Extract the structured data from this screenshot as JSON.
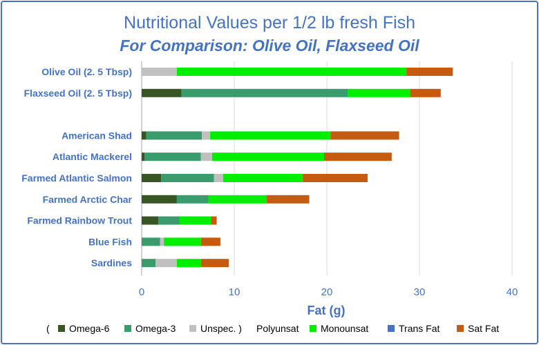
{
  "chart_data": {
    "type": "bar",
    "orientation": "horizontal",
    "stacked": true,
    "title": "Nutritional Values per 1/2 lb fresh Fish",
    "subtitle": "For Comparison: Olive Oil, Flaxseed Oil",
    "xlabel": "Fat (g)",
    "xlim": [
      0,
      40
    ],
    "xticks": [
      0,
      10,
      20,
      30,
      40
    ],
    "grid": true,
    "legend_placement": "bottom",
    "legend_prefix": "(",
    "categories": [
      "Olive Oil (2. 5 Tbsp)",
      "Flaxseed Oil (2. 5 Tbsp)",
      "",
      "American Shad",
      "Atlantic Mackerel",
      "Farmed Atlantic Salmon",
      "Farmed Arctic Char",
      "Farmed Rainbow Trout",
      "Blue Fish",
      "Sardines"
    ],
    "series": [
      {
        "name": "Omega-6",
        "color": "#375623",
        "values": [
          0.0,
          4.3,
          null,
          0.5,
          0.3,
          2.1,
          3.8,
          1.8,
          0.0,
          0.0
        ]
      },
      {
        "name": "Omega-3",
        "color": "#3a9b6c",
        "values": [
          0.0,
          18.0,
          null,
          6.0,
          6.1,
          5.7,
          3.4,
          2.3,
          2.0,
          1.5
        ]
      },
      {
        "name": "Unspec. )",
        "color": "#c0c0c0",
        "values": [
          3.8,
          0.0,
          null,
          0.9,
          1.2,
          1.0,
          0.0,
          0.0,
          0.4,
          2.3
        ]
      },
      {
        "name": "Polyunsat",
        "color": "#ffffff",
        "values": [
          0,
          0,
          null,
          0,
          0,
          0,
          0,
          0,
          0,
          0
        ]
      },
      {
        "name": "Monounsat",
        "color": "#00ee00",
        "values": [
          24.8,
          6.7,
          null,
          13.0,
          12.1,
          8.6,
          6.3,
          3.4,
          4.0,
          2.6
        ]
      },
      {
        "name": "Trans Fat",
        "color": "#4472c4",
        "values": [
          0,
          0,
          null,
          0,
          0,
          0,
          0,
          0,
          0,
          0
        ]
      },
      {
        "name": "Sat Fat",
        "color": "#c55a11",
        "values": [
          5.0,
          3.3,
          null,
          7.4,
          7.3,
          7.0,
          4.6,
          0.6,
          2.1,
          3.0
        ]
      }
    ]
  }
}
